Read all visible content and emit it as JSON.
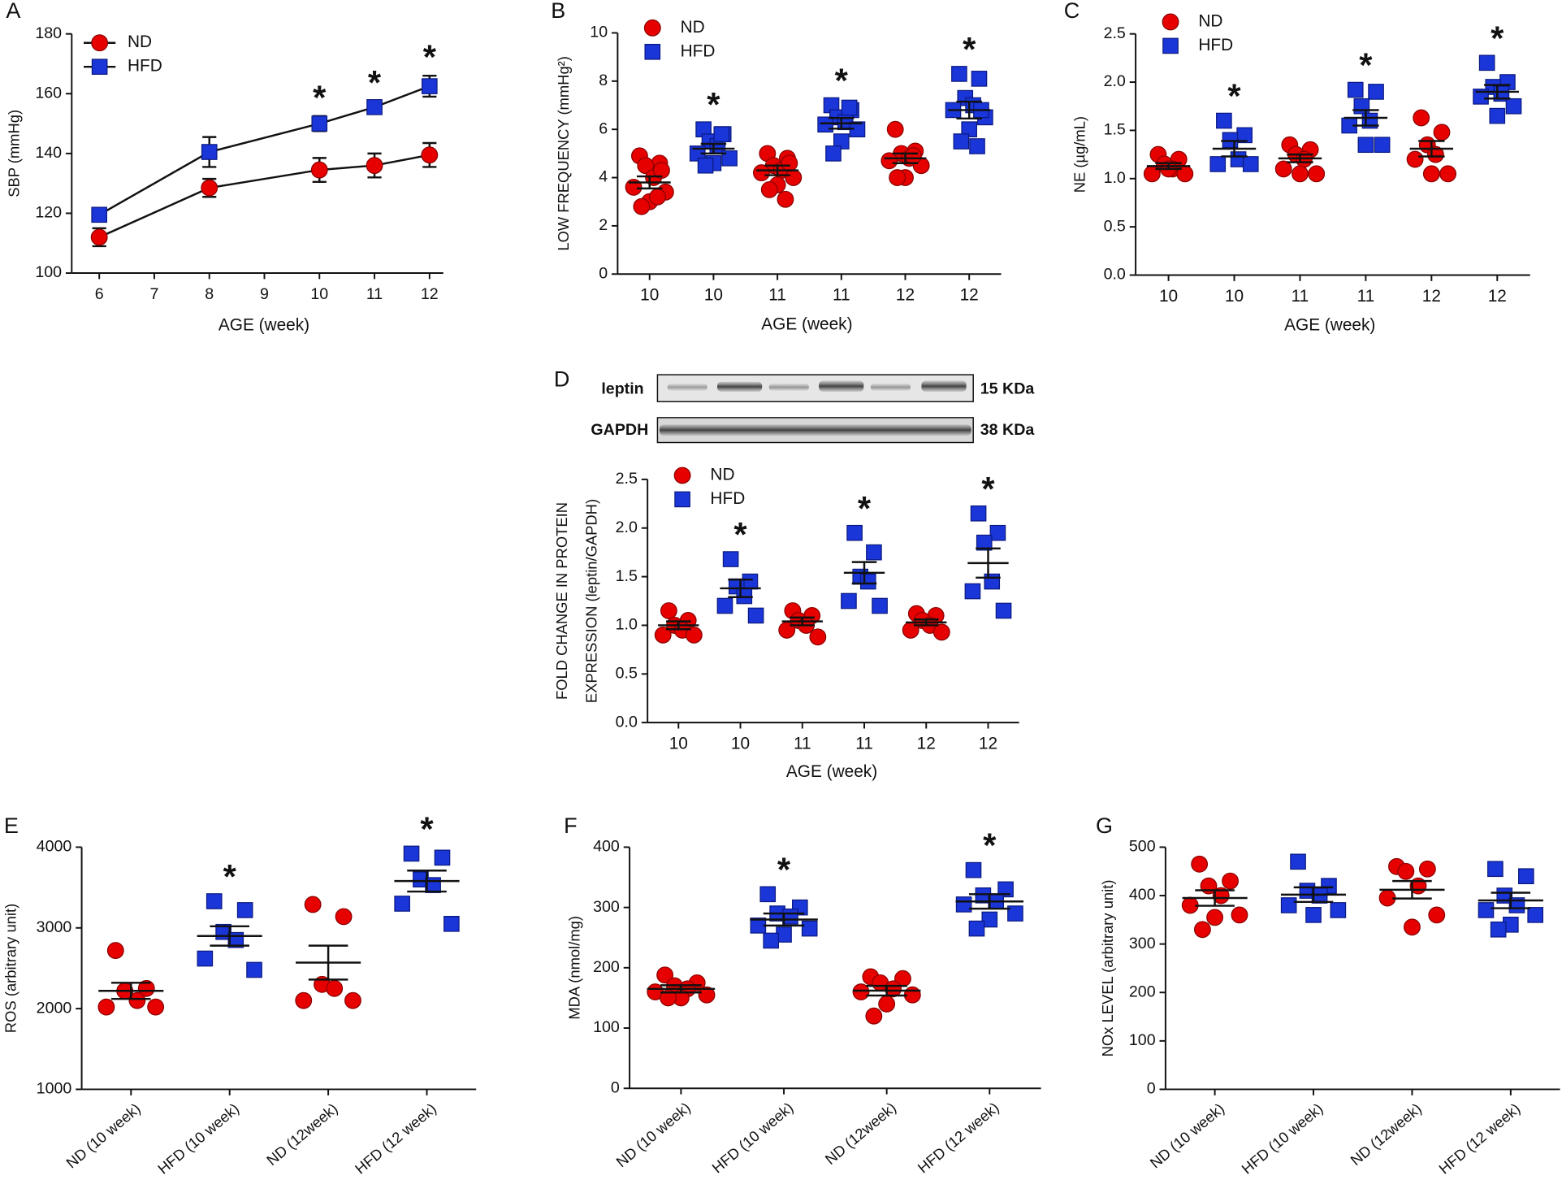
{
  "chart_data": [
    {
      "type": "line",
      "panel": "A",
      "ylabel": "SBP (mmHg)",
      "xlabel": "AGE (week)",
      "x": [
        6,
        8,
        10,
        11,
        12
      ],
      "xlim": [
        5.5,
        12.25
      ],
      "xticks": [
        6,
        7,
        8,
        9,
        10,
        11,
        12
      ],
      "ylim": [
        100,
        180
      ],
      "yticks": [
        100,
        120,
        140,
        160,
        180
      ],
      "series": [
        {
          "name": "ND",
          "color": "#e60000",
          "marker": "circle",
          "values": [
            112,
            128.5,
            134.5,
            136,
            139.5
          ],
          "errors": [
            3,
            3,
            4,
            4,
            4
          ]
        },
        {
          "name": "HFD",
          "color": "#1a35d8",
          "marker": "square",
          "values": [
            119.5,
            140.5,
            150,
            155.5,
            162.5
          ],
          "errors": [
            2,
            5,
            2.5,
            2,
            3.5
          ]
        }
      ],
      "significance": [
        null,
        null,
        "*",
        "*",
        "*"
      ]
    },
    {
      "type": "dotplot",
      "panel": "B",
      "ylabel": "LOW FREQUENCY (mmHg²)",
      "xlabel": "AGE (week)",
      "categories": [
        "10",
        "10",
        "11",
        "11",
        "12",
        "12"
      ],
      "ylim": [
        0,
        10
      ],
      "yticks": [
        0,
        2,
        4,
        6,
        8,
        10
      ],
      "series": [
        {
          "name": "ND",
          "color": "#e60000",
          "marker": "circle"
        },
        {
          "name": "HFD",
          "color": "#1a35d8",
          "marker": "square"
        }
      ],
      "group_series": [
        0,
        1,
        0,
        1,
        0,
        1
      ],
      "points": [
        [
          4.9,
          4.6,
          4.5,
          4.0,
          3.6,
          3.4,
          3.0,
          2.8,
          3.2,
          4.3
        ],
        [
          6.0,
          5.8,
          5.5,
          5.3,
          5.0,
          4.8,
          4.6,
          4.5,
          5.8
        ],
        [
          5.0,
          4.8,
          4.5,
          4.3,
          4.2,
          4.0,
          3.7,
          3.5,
          3.1,
          4.6
        ],
        [
          7.0,
          6.8,
          6.5,
          6.3,
          6.2,
          6.0,
          5.5,
          5.0,
          6.9
        ],
        [
          6.0,
          5.1,
          5.0,
          4.8,
          4.7,
          4.5,
          4.0,
          4.0,
          4.9
        ],
        [
          8.3,
          8.1,
          7.3,
          7.0,
          6.8,
          6.5,
          6.0,
          5.5,
          5.3,
          6.8
        ]
      ],
      "means": [
        3.8,
        5.2,
        4.3,
        6.25,
        4.8,
        6.8
      ],
      "sems": [
        0.25,
        0.2,
        0.2,
        0.22,
        0.2,
        0.35
      ],
      "significance": [
        null,
        "*",
        null,
        "*",
        null,
        "*"
      ]
    },
    {
      "type": "dotplot",
      "panel": "C",
      "ylabel": "NE (µg/mL)",
      "xlabel": "AGE (week)",
      "categories": [
        "10",
        "10",
        "11",
        "11",
        "12",
        "12"
      ],
      "ylim": [
        0,
        2.5
      ],
      "yticks": [
        {
          "value": 0,
          "label": "0.0"
        },
        0.5,
        {
          "value": 1,
          "label": "1.0"
        },
        1.5,
        {
          "value": 2,
          "label": "2.0"
        },
        2.5
      ],
      "series": [
        {
          "name": "ND",
          "color": "#e60000",
          "marker": "circle"
        },
        {
          "name": "HFD",
          "color": "#1a35d8",
          "marker": "square"
        }
      ],
      "group_series": [
        0,
        1,
        0,
        1,
        0,
        1
      ],
      "points": [
        [
          1.25,
          1.2,
          1.15,
          1.1,
          1.05,
          1.05,
          1.1
        ],
        [
          1.6,
          1.45,
          1.4,
          1.2,
          1.15,
          1.15
        ],
        [
          1.35,
          1.3,
          1.25,
          1.2,
          1.1,
          1.05,
          1.05
        ],
        [
          1.92,
          1.9,
          1.75,
          1.6,
          1.55,
          1.35,
          1.35
        ],
        [
          1.63,
          1.48,
          1.35,
          1.25,
          1.2,
          1.05,
          1.05
        ],
        [
          2.2,
          2.0,
          1.95,
          1.88,
          1.85,
          1.75,
          1.65
        ]
      ],
      "means": [
        1.13,
        1.31,
        1.21,
        1.63,
        1.31,
        1.9
      ],
      "sems": [
        0.03,
        0.08,
        0.04,
        0.08,
        0.08,
        0.07
      ],
      "significance": [
        null,
        "*",
        null,
        "*",
        null,
        "*"
      ]
    },
    {
      "type": "dotplot",
      "panel": "D",
      "ylabel": [
        "FOLD CHANGE IN PROTEIN",
        "EXPRESSION (leptin/GAPDH)"
      ],
      "xlabel": "AGE (week)",
      "blot": {
        "rows": [
          "leptin",
          "GAPDH"
        ],
        "sizes": [
          "15 KDa",
          "38 KDa"
        ]
      },
      "categories": [
        "10",
        "10",
        "11",
        "11",
        "12",
        "12"
      ],
      "ylim": [
        0,
        2.5
      ],
      "yticks": [
        {
          "value": 0,
          "label": "0.0"
        },
        0.5,
        {
          "value": 1,
          "label": "1.0"
        },
        1.5,
        {
          "value": 2,
          "label": "2.0"
        },
        2.5
      ],
      "series": [
        {
          "name": "ND",
          "color": "#e60000",
          "marker": "circle"
        },
        {
          "name": "HFD",
          "color": "#1a35d8",
          "marker": "square"
        }
      ],
      "group_series": [
        0,
        1,
        0,
        1,
        0,
        1
      ],
      "points": [
        [
          1.15,
          1.05,
          1.0,
          0.95,
          0.9,
          0.9
        ],
        [
          1.68,
          1.45,
          1.4,
          1.3,
          1.2,
          1.1
        ],
        [
          1.15,
          1.1,
          1.05,
          1.0,
          0.95,
          0.88
        ],
        [
          1.95,
          1.75,
          1.5,
          1.45,
          1.25,
          1.2
        ],
        [
          1.12,
          1.1,
          1.05,
          1.0,
          0.95,
          0.93
        ],
        [
          2.15,
          1.95,
          1.85,
          1.45,
          1.35,
          1.15
        ]
      ],
      "means": [
        1.0,
        1.38,
        1.04,
        1.54,
        1.03,
        1.64
      ],
      "sems": [
        0.04,
        0.09,
        0.04,
        0.11,
        0.03,
        0.15
      ],
      "significance": [
        null,
        "*",
        null,
        "*",
        null,
        "*"
      ]
    },
    {
      "type": "dotplot",
      "panel": "E",
      "ylabel": "ROS (arbitrary unit)",
      "legend": false,
      "categories": [
        "ND (10 week)",
        "HFD (10 week)",
        "ND (12week)",
        "HFD (12 week)"
      ],
      "ylim": [
        1000,
        4000
      ],
      "yticks": [
        1000,
        2000,
        3000,
        4000
      ],
      "series": [
        {
          "color": "#e60000",
          "marker": "circle"
        },
        {
          "color": "#1a35d8",
          "marker": "square"
        }
      ],
      "group_series": [
        0,
        1,
        0,
        1
      ],
      "points": [
        [
          2720,
          2250,
          2220,
          2100,
          2020,
          2020
        ],
        [
          3330,
          3220,
          2950,
          2850,
          2620,
          2480
        ],
        [
          3290,
          3140,
          2300,
          2250,
          2100,
          2100
        ],
        [
          3920,
          3870,
          3600,
          3530,
          3300,
          3050
        ]
      ],
      "means": [
        2220,
        2900,
        2570,
        3580
      ],
      "sems": [
        100,
        120,
        210,
        130
      ],
      "significance": [
        null,
        "*",
        null,
        "*"
      ]
    },
    {
      "type": "dotplot",
      "panel": "F",
      "ylabel": "MDA (nmol/mg)",
      "legend": false,
      "categories": [
        "ND (10 week)",
        "HFD (10 week)",
        "ND (12week)",
        "HFD (12 week)"
      ],
      "ylim": [
        0,
        400
      ],
      "yticks": [
        0,
        100,
        200,
        300,
        400
      ],
      "series": [
        {
          "color": "#e60000",
          "marker": "circle"
        },
        {
          "color": "#1a35d8",
          "marker": "square"
        }
      ],
      "group_series": [
        0,
        1,
        0,
        1
      ],
      "points": [
        [
          188,
          175,
          170,
          165,
          160,
          155,
          150,
          150
        ],
        [
          322,
          300,
          290,
          285,
          270,
          265,
          255,
          245
        ],
        [
          185,
          182,
          175,
          165,
          160,
          155,
          140,
          120
        ],
        [
          362,
          330,
          320,
          310,
          305,
          290,
          280,
          265
        ]
      ],
      "means": [
        165,
        280,
        162,
        310
      ],
      "sems": [
        6,
        10,
        8,
        12
      ],
      "significance": [
        null,
        "*",
        null,
        "*"
      ]
    },
    {
      "type": "dotplot",
      "panel": "G",
      "ylabel": "NOx LEVEL (arbitrary unit)",
      "legend": false,
      "categories": [
        "ND (10 week)",
        "HFD (10 week)",
        "ND (12week)",
        "HFD (12 week)"
      ],
      "ylim": [
        0,
        500
      ],
      "yticks": [
        0,
        100,
        200,
        300,
        400,
        500
      ],
      "series": [
        {
          "color": "#e60000",
          "marker": "circle"
        },
        {
          "color": "#1a35d8",
          "marker": "square"
        }
      ],
      "group_series": [
        0,
        1,
        0,
        1
      ],
      "points": [
        [
          465,
          430,
          420,
          400,
          380,
          360,
          355,
          330
        ],
        [
          470,
          420,
          410,
          400,
          380,
          370,
          360
        ],
        [
          460,
          455,
          450,
          420,
          395,
          360,
          335
        ],
        [
          455,
          440,
          400,
          380,
          370,
          360,
          340,
          330
        ]
      ],
      "means": [
        395,
        402,
        412,
        390
      ],
      "sems": [
        16,
        15,
        18,
        16
      ],
      "significance": [
        null,
        null,
        null,
        null
      ]
    }
  ]
}
